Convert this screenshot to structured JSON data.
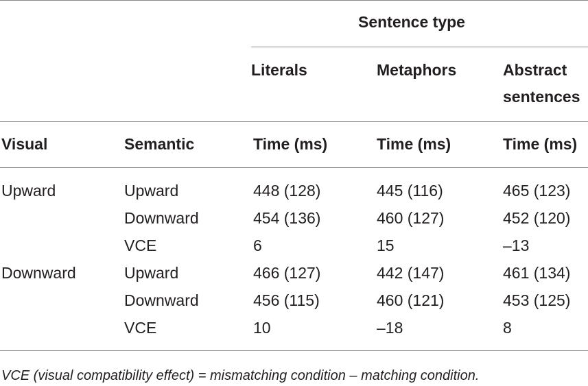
{
  "table": {
    "spanner_header": "Sentence type",
    "sentence_types": [
      "Literals",
      "Metaphors",
      "Abstract",
      "sentences"
    ],
    "columns": {
      "visual": "Visual",
      "semantic": "Semantic",
      "time_literals": "Time (ms)",
      "time_metaphors": "Time (ms)",
      "time_abstract": "Time (ms)"
    },
    "rows": [
      {
        "visual": "Upward",
        "semantic": "Upward",
        "literals": "448 (128)",
        "metaphors": "445 (116)",
        "abstract": "465 (123)"
      },
      {
        "visual": "",
        "semantic": "Downward",
        "literals": "454 (136)",
        "metaphors": "460 (127)",
        "abstract": "452 (120)"
      },
      {
        "visual": "",
        "semantic": "VCE",
        "literals": "6",
        "metaphors": "15",
        "abstract": "–13"
      },
      {
        "visual": "Downward",
        "semantic": "Upward",
        "literals": "466 (127)",
        "metaphors": "442 (147)",
        "abstract": "461 (134)"
      },
      {
        "visual": "",
        "semantic": "Downward",
        "literals": "456 (115)",
        "metaphors": "460 (121)",
        "abstract": "453 (125)"
      },
      {
        "visual": "",
        "semantic": "VCE",
        "literals": "10",
        "metaphors": "–18",
        "abstract": "8"
      }
    ],
    "footnote": "VCE (visual compatibility effect) = mismatching condition – matching condition."
  }
}
